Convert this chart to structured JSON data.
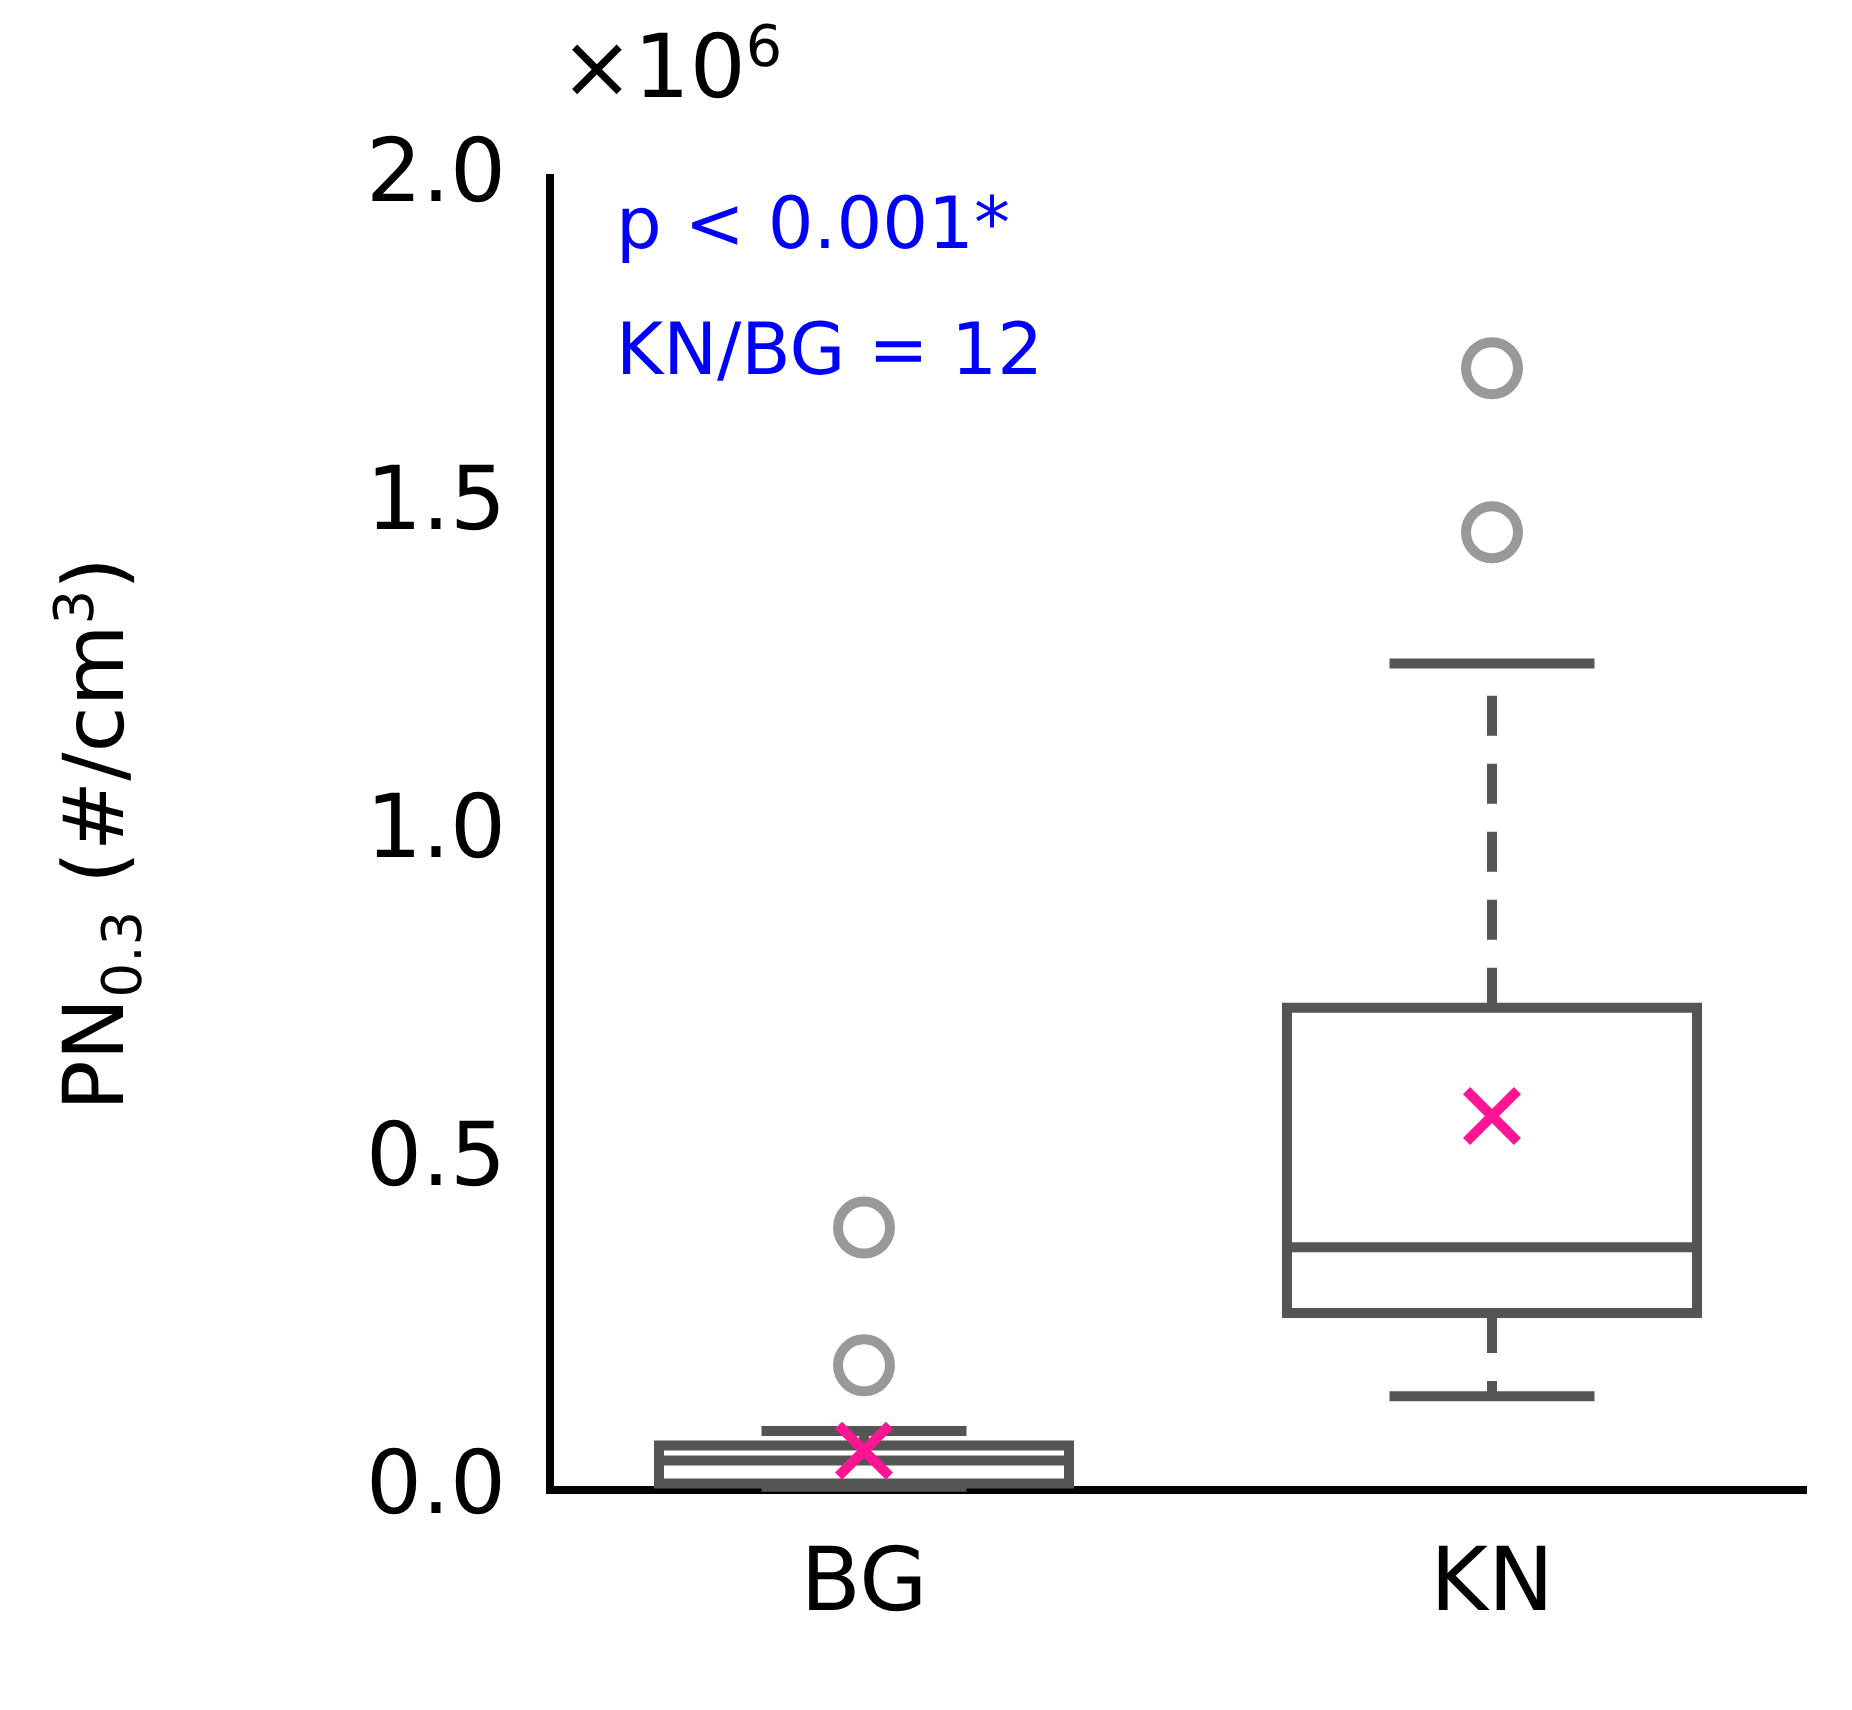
{
  "chart_data": {
    "type": "box",
    "categories": [
      "BG",
      "KN"
    ],
    "ylabel": "PN$_{0.3}$ (#/cm$^{3}$)",
    "annotations": [
      "×10$^{6}$",
      "p < 0.001*",
      "KN/BG = 12"
    ],
    "boxes": [
      {
        "low": 0.005,
        "q1": 0.01,
        "median": 0.045,
        "q3": 0.068,
        "high": 0.09,
        "mean": 0.06,
        "outliers": [
          0.19,
          0.4
        ]
      },
      {
        "low": 0.143,
        "q1": 0.27,
        "median": 0.37,
        "q3": 0.735,
        "high": 1.26,
        "mean": 0.57,
        "outliers": [
          1.46,
          1.71
        ]
      }
    ],
    "color": "#555555",
    "ylim": [
      0,
      2.0
    ],
    "yticks": [
      {
        "value": 0,
        "label": "0.0"
      },
      0.5,
      {
        "value": 1,
        "label": "1.0"
      },
      1.5,
      {
        "value": 2,
        "label": "2.0"
      }
    ],
    "grid": false,
    "legend": false
  }
}
